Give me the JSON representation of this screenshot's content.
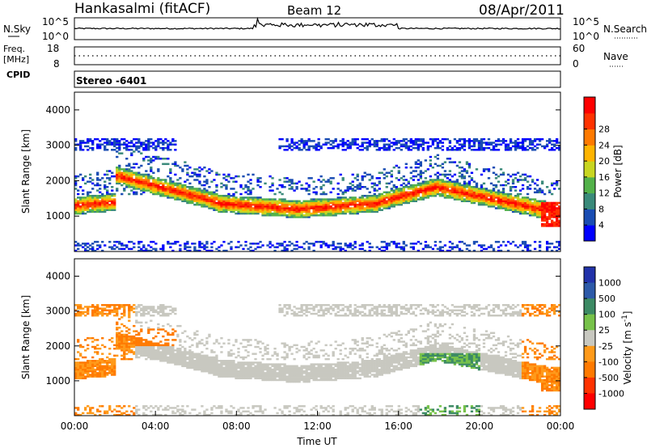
{
  "header": {
    "station": "Hankasalmi (fitACF)",
    "beam": "Beam 12",
    "date": "08/Apr/2011"
  },
  "strips": {
    "nsky_label": "N.Sky",
    "nsky_ticks": [
      "10^5",
      "10^0"
    ],
    "nsearch_label": "N.Search",
    "nsearch_ticks": [
      "10^5",
      "10^0"
    ],
    "freq_label_top": "Freq.",
    "freq_label_unit": "[MHz]",
    "freq_ticks": [
      "18",
      "8"
    ],
    "nave_label": "Nave",
    "nave_ticks": [
      "60",
      "0"
    ],
    "cpid_label": "CPID",
    "cpid_value": "Stereo -6401"
  },
  "chart_data": [
    {
      "type": "heatmap",
      "name": "power",
      "ylabel": "Slant Range [km]",
      "ylim": [
        0,
        4500
      ],
      "yticks": [
        1000,
        2000,
        3000,
        4000
      ],
      "xlim": [
        0,
        24
      ],
      "colorbar": {
        "label": "Power [dB]",
        "ticks": [
          "4",
          "8",
          "12",
          "16",
          "20",
          "24",
          "28"
        ],
        "colors": [
          "#0000ff",
          "#1a4db3",
          "#3a8a7a",
          "#53b24a",
          "#c8d621",
          "#ffb400",
          "#ff7a00",
          "#ff3300",
          "#ff0000"
        ]
      }
    },
    {
      "type": "heatmap",
      "name": "velocity",
      "ylabel": "Slant Range [km]",
      "ylim": [
        0,
        4500
      ],
      "yticks": [
        1000,
        2000,
        3000,
        4000
      ],
      "xlim": [
        0,
        24
      ],
      "xlabel": "Time UT",
      "xticks": [
        "00:00",
        "04:00",
        "08:00",
        "12:00",
        "16:00",
        "20:00",
        "00:00"
      ],
      "colorbar": {
        "label": "Velocity [m s",
        "label_sup": "-1",
        "label_end": "]",
        "ticks": [
          "1000",
          "500",
          "100",
          "25",
          "-25",
          "-100",
          "-500",
          "-1000"
        ],
        "colors": [
          "#2233aa",
          "#2d5aa8",
          "#3c8a64",
          "#77c24a",
          "#c8c8c0",
          "#ff9a1a",
          "#ff7a00",
          "#ff3300",
          "#ff0000"
        ]
      }
    }
  ]
}
